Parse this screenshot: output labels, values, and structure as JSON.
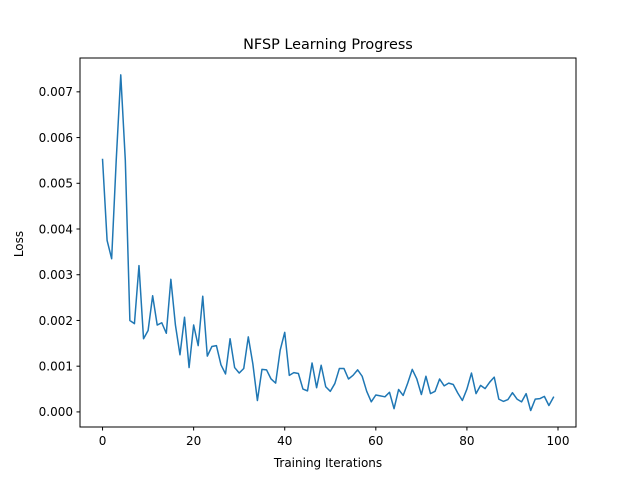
{
  "chart_data": {
    "type": "line",
    "title": "NFSP Learning Progress",
    "xlabel": "Training Iterations",
    "ylabel": "Loss",
    "xlim": [
      -4.95,
      103.95
    ],
    "ylim": [
      -0.00033,
      0.00774
    ],
    "xticks": [
      0,
      20,
      40,
      60,
      80,
      100
    ],
    "xtick_labels": [
      "0",
      "20",
      "40",
      "60",
      "80",
      "100"
    ],
    "yticks": [
      0.0,
      0.001,
      0.002,
      0.003,
      0.004,
      0.005,
      0.006,
      0.007
    ],
    "ytick_labels": [
      "0.000",
      "0.001",
      "0.002",
      "0.003",
      "0.004",
      "0.005",
      "0.006",
      "0.007"
    ],
    "grid": false,
    "series": [
      {
        "color": "#1f77b4",
        "x": [
          0,
          1,
          2,
          3,
          4,
          5,
          6,
          7,
          8,
          9,
          10,
          11,
          12,
          13,
          14,
          15,
          16,
          17,
          18,
          19,
          20,
          21,
          22,
          23,
          24,
          25,
          26,
          27,
          28,
          29,
          30,
          31,
          32,
          33,
          34,
          35,
          36,
          37,
          38,
          39,
          40,
          41,
          42,
          43,
          44,
          45,
          46,
          47,
          48,
          49,
          50,
          51,
          52,
          53,
          54,
          55,
          56,
          57,
          58,
          59,
          60,
          61,
          62,
          63,
          64,
          65,
          66,
          67,
          68,
          69,
          70,
          71,
          72,
          73,
          74,
          75,
          76,
          77,
          78,
          79,
          80,
          81,
          82,
          83,
          84,
          85,
          86,
          87,
          88,
          89,
          90,
          91,
          92,
          93,
          94,
          95,
          96,
          97,
          98,
          99
        ],
        "values": [
          0.00552,
          0.00375,
          0.00335,
          0.0055,
          0.00737,
          0.0055,
          0.002,
          0.00193,
          0.0032,
          0.0016,
          0.00178,
          0.00254,
          0.0019,
          0.00195,
          0.00172,
          0.0029,
          0.0019,
          0.00125,
          0.00207,
          0.00097,
          0.0019,
          0.00145,
          0.00253,
          0.00122,
          0.00143,
          0.00145,
          0.00103,
          0.00083,
          0.0016,
          0.00097,
          0.00085,
          0.00095,
          0.00164,
          0.00105,
          0.00025,
          0.00093,
          0.00092,
          0.00072,
          0.00063,
          0.00135,
          0.00174,
          0.0008,
          0.00086,
          0.00084,
          0.0005,
          0.00046,
          0.00107,
          0.00053,
          0.00102,
          0.00055,
          0.00045,
          0.00062,
          0.00095,
          0.00095,
          0.00072,
          0.0008,
          0.00092,
          0.00078,
          0.00045,
          0.00022,
          0.00037,
          0.00035,
          0.00033,
          0.00043,
          7e-05,
          0.00049,
          0.00036,
          0.00063,
          0.00093,
          0.00072,
          0.00038,
          0.00078,
          0.0004,
          0.00045,
          0.00072,
          0.00057,
          0.00063,
          0.0006,
          0.00041,
          0.00025,
          0.0005,
          0.00085,
          0.0004,
          0.00058,
          0.00051,
          0.00065,
          0.00076,
          0.00028,
          0.00023,
          0.00027,
          0.00042,
          0.00028,
          0.00022,
          0.0004,
          3e-05,
          0.00028,
          0.00029,
          0.00034,
          0.00014,
          0.00032
        ]
      }
    ]
  }
}
